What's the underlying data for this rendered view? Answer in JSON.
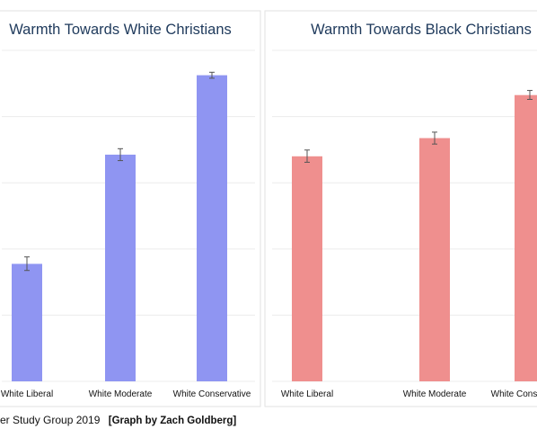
{
  "chart_data": [
    {
      "type": "bar",
      "title": "Warmth Towards White Christians",
      "categories": [
        "White Liberal",
        "White Moderate",
        "White Conservative"
      ],
      "values": [
        35.5,
        68.5,
        92.5
      ],
      "error_low": [
        33.5,
        66.7,
        91.6
      ],
      "error_high": [
        37.6,
        70.3,
        93.4
      ],
      "color": "#8f95f2",
      "ylim": [
        0,
        103
      ],
      "grid": true
    },
    {
      "type": "bar",
      "title": "Warmth Towards Black Christians",
      "categories": [
        "White Liberal",
        "White Moderate",
        "White Conservative"
      ],
      "values": [
        68.0,
        73.5,
        86.5
      ],
      "error_low": [
        66.2,
        71.7,
        85.2
      ],
      "error_high": [
        69.9,
        75.3,
        87.9
      ],
      "color": "#ef8f8e",
      "ylim": [
        0,
        103
      ],
      "grid": true
    }
  ],
  "footer": {
    "source_text": "er Study Group 2019",
    "credit_text": "[Graph by Zach Goldberg]"
  }
}
